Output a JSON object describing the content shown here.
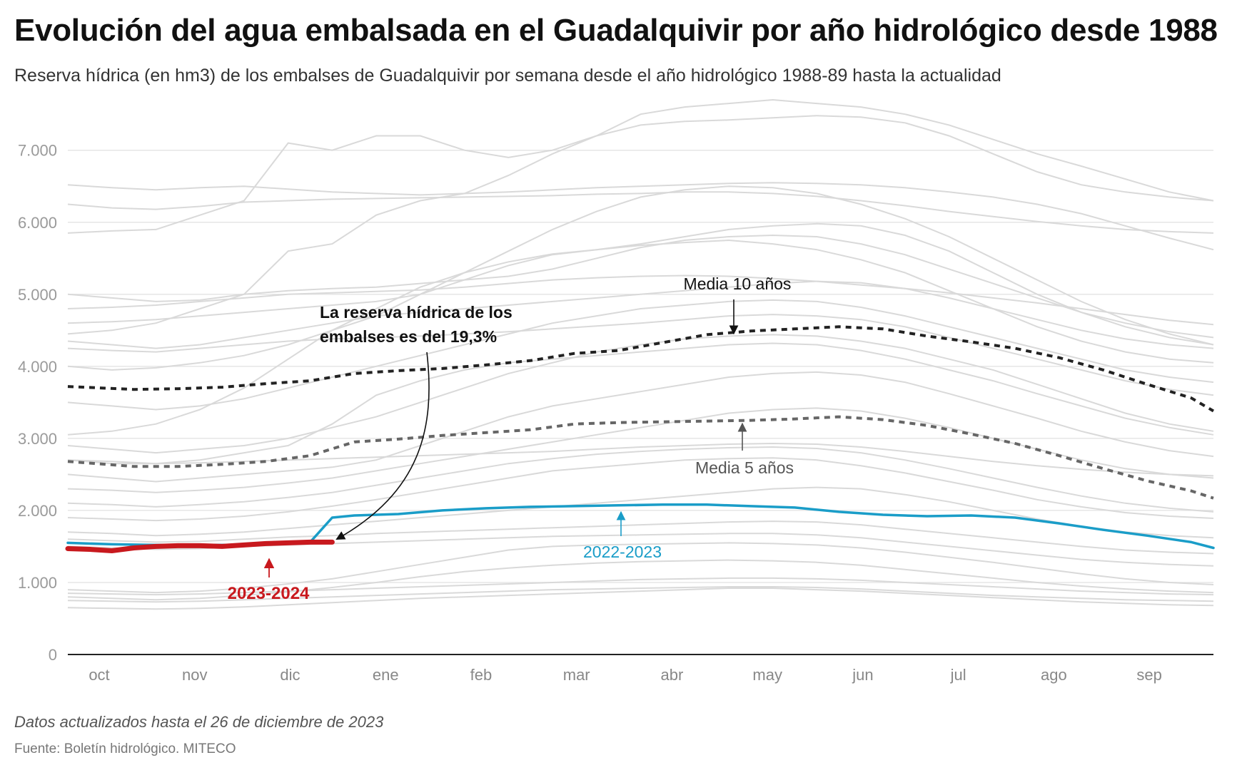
{
  "title": "Evolución del agua embalsada en el Guadalquivir por año hidrológico desde 1988",
  "subtitle": "Reserva hídrica (en hm3) de los embalses de Guadalquivir por semana desde el año hidrológico 1988-89 hasta la actualidad",
  "note": "Datos actualizados hasta el 26 de diciembre de 2023",
  "source": "Fuente: Boletín hidrológico. MITECO",
  "colors": {
    "history": "#d9d9d9",
    "current": "#c8191e",
    "previous": "#1a9dc8",
    "media10": "#222222",
    "media5": "#666666",
    "axis": "#222222",
    "grid": "#e6e6e6",
    "tick": "#9a9a9a"
  },
  "chart_data": {
    "type": "line",
    "x_unit": "semana del año hidrológico",
    "months": [
      "oct",
      "nov",
      "dic",
      "ene",
      "feb",
      "mar",
      "abr",
      "may",
      "jun",
      "jul",
      "ago",
      "sep"
    ],
    "yticks": [
      {
        "value": 0,
        "label": "0"
      },
      {
        "value": 1000,
        "label": "1.000"
      },
      {
        "value": 2000,
        "label": "2.000"
      },
      {
        "value": 3000,
        "label": "3.000"
      },
      {
        "value": 4000,
        "label": "4.000"
      },
      {
        "value": 5000,
        "label": "5.000"
      },
      {
        "value": 6000,
        "label": "6.000"
      },
      {
        "value": 7000,
        "label": "7.000"
      }
    ],
    "ylim": [
      0,
      7700
    ],
    "xlim": [
      0,
      52
    ],
    "grid": true,
    "highlight": [
      {
        "id": "media10",
        "name": "Media 10 años",
        "x": [
          0,
          3,
          5,
          7,
          9,
          11,
          13,
          15,
          17,
          19,
          21,
          23,
          25,
          27,
          29,
          31,
          33,
          35,
          37,
          39,
          41,
          43,
          45,
          47,
          49,
          51,
          52
        ],
        "values": [
          3720,
          3680,
          3690,
          3710,
          3760,
          3800,
          3900,
          3940,
          3970,
          4020,
          4080,
          4180,
          4220,
          4330,
          4440,
          4490,
          4520,
          4550,
          4520,
          4420,
          4340,
          4250,
          4120,
          3950,
          3750,
          3560,
          3380
        ]
      },
      {
        "id": "media5",
        "name": "Media 5 años",
        "x": [
          0,
          3,
          5,
          7,
          9,
          11,
          13,
          15,
          17,
          19,
          21,
          23,
          25,
          27,
          29,
          31,
          33,
          35,
          37,
          39,
          41,
          43,
          45,
          47,
          49,
          51,
          52
        ],
        "values": [
          2680,
          2610,
          2610,
          2640,
          2680,
          2760,
          2950,
          2990,
          3040,
          3080,
          3120,
          3200,
          3220,
          3230,
          3240,
          3250,
          3270,
          3300,
          3260,
          3180,
          3060,
          2930,
          2760,
          2580,
          2410,
          2270,
          2170
        ]
      },
      {
        "id": "previous",
        "name": "2022-2023",
        "x": [
          0,
          2,
          4,
          6,
          8,
          10,
          11,
          12,
          13,
          15,
          17,
          19,
          21,
          23,
          25,
          27,
          29,
          31,
          33,
          35,
          37,
          39,
          41,
          43,
          45,
          47,
          49,
          51,
          52
        ],
        "values": [
          1550,
          1530,
          1520,
          1520,
          1520,
          1550,
          1560,
          1900,
          1930,
          1950,
          2000,
          2030,
          2050,
          2060,
          2070,
          2080,
          2080,
          2060,
          2040,
          1980,
          1940,
          1920,
          1930,
          1900,
          1820,
          1730,
          1650,
          1560,
          1480
        ]
      },
      {
        "id": "current",
        "name": "2023-2024",
        "x": [
          0,
          1,
          2,
          3,
          4,
          5,
          6,
          7,
          8,
          9,
          10,
          11,
          12
        ],
        "values": [
          1470,
          1460,
          1440,
          1480,
          1500,
          1510,
          1510,
          1500,
          1520,
          1540,
          1550,
          1560,
          1560
        ]
      }
    ],
    "history_x": [
      0,
      2,
      4,
      6,
      8,
      10,
      12,
      14,
      16,
      18,
      20,
      22,
      24,
      26,
      28,
      30,
      32,
      34,
      36,
      38,
      40,
      42,
      44,
      46,
      48,
      50,
      52
    ],
    "history": [
      [
        6520,
        6480,
        6450,
        6480,
        6500,
        6460,
        6420,
        6400,
        6380,
        6400,
        6420,
        6450,
        6480,
        6500,
        6520,
        6540,
        6550,
        6540,
        6520,
        6480,
        6420,
        6350,
        6250,
        6120,
        5950,
        5780,
        5620
      ],
      [
        6250,
        6200,
        6180,
        6220,
        6280,
        6300,
        6320,
        6330,
        6340,
        6350,
        6360,
        6370,
        6390,
        6400,
        6420,
        6420,
        6400,
        6360,
        6300,
        6230,
        6150,
        6080,
        6010,
        5950,
        5900,
        5870,
        5850
      ],
      [
        5850,
        5880,
        5900,
        6100,
        6300,
        7100,
        7000,
        7200,
        7200,
        7000,
        6900,
        7000,
        7200,
        7500,
        7600,
        7650,
        7700,
        7650,
        7600,
        7500,
        7350,
        7150,
        6950,
        6780,
        6600,
        6420,
        6300
      ],
      [
        4450,
        4500,
        4600,
        4800,
        5000,
        5600,
        5700,
        6100,
        6300,
        6400,
        6650,
        6950,
        7200,
        7350,
        7400,
        7420,
        7450,
        7480,
        7460,
        7380,
        7200,
        6950,
        6700,
        6520,
        6420,
        6350,
        6300
      ],
      [
        4000,
        3950,
        3980,
        4050,
        4150,
        4300,
        4500,
        4700,
        5000,
        5300,
        5600,
        5900,
        6150,
        6350,
        6450,
        6500,
        6480,
        6400,
        6250,
        6050,
        5800,
        5500,
        5200,
        4900,
        4650,
        4450,
        4300
      ],
      [
        4600,
        4620,
        4650,
        4700,
        4750,
        4800,
        4850,
        4900,
        5000,
        5200,
        5400,
        5550,
        5620,
        5700,
        5800,
        5900,
        5950,
        5980,
        5950,
        5820,
        5600,
        5300,
        5000,
        4750,
        4550,
        4400,
        4300
      ],
      [
        3050,
        3100,
        3200,
        3400,
        3700,
        4100,
        4500,
        4800,
        5100,
        5300,
        5450,
        5560,
        5620,
        5680,
        5720,
        5750,
        5700,
        5620,
        5480,
        5300,
        5050,
        4800,
        4550,
        4350,
        4200,
        4100,
        4050
      ],
      [
        4800,
        4820,
        4850,
        4900,
        4950,
        5000,
        5020,
        5040,
        5060,
        5100,
        5150,
        5200,
        5230,
        5250,
        5260,
        5250,
        5220,
        5180,
        5130,
        5080,
        5020,
        4950,
        4880,
        4800,
        4720,
        4640,
        4580
      ],
      [
        5000,
        4950,
        4900,
        4920,
        5000,
        5050,
        5080,
        5100,
        5150,
        5200,
        5250,
        5350,
        5500,
        5650,
        5750,
        5800,
        5820,
        5800,
        5700,
        5550,
        5350,
        5150,
        4950,
        4750,
        4600,
        4480,
        4400
      ],
      [
        4350,
        4300,
        4250,
        4300,
        4400,
        4500,
        4600,
        4700,
        4750,
        4800,
        4850,
        4900,
        4950,
        5000,
        5050,
        5100,
        5150,
        5180,
        5160,
        5080,
        4950,
        4800,
        4650,
        4500,
        4380,
        4300,
        4250
      ],
      [
        3500,
        3450,
        3400,
        3450,
        3550,
        3700,
        3850,
        4000,
        4150,
        4300,
        4450,
        4600,
        4700,
        4800,
        4850,
        4900,
        4920,
        4900,
        4820,
        4700,
        4550,
        4400,
        4250,
        4100,
        3950,
        3850,
        3780
      ],
      [
        4250,
        4220,
        4200,
        4250,
        4300,
        4350,
        4380,
        4400,
        4420,
        4450,
        4480,
        4520,
        4560,
        4600,
        4650,
        4700,
        4720,
        4700,
        4650,
        4550,
        4400,
        4250,
        4100,
        3950,
        3800,
        3680,
        3600
      ],
      [
        2900,
        2850,
        2800,
        2850,
        2900,
        3000,
        3150,
        3300,
        3500,
        3700,
        3900,
        4050,
        4200,
        4300,
        4380,
        4420,
        4440,
        4420,
        4350,
        4250,
        4100,
        3950,
        3750,
        3550,
        3350,
        3200,
        3100
      ],
      [
        2700,
        2650,
        2650,
        2700,
        2800,
        2900,
        3200,
        3600,
        3800,
        3950,
        4050,
        4100,
        4150,
        4200,
        4250,
        4300,
        4320,
        4300,
        4220,
        4100,
        3950,
        3800,
        3620,
        3450,
        3280,
        3150,
        3050
      ],
      [
        2500,
        2450,
        2400,
        2450,
        2500,
        2550,
        2600,
        2700,
        2900,
        3100,
        3300,
        3450,
        3550,
        3650,
        3750,
        3850,
        3900,
        3920,
        3880,
        3780,
        3620,
        3450,
        3280,
        3100,
        2950,
        2830,
        2750
      ],
      [
        2300,
        2280,
        2250,
        2280,
        2320,
        2380,
        2450,
        2550,
        2650,
        2750,
        2850,
        2950,
        3050,
        3150,
        3250,
        3350,
        3400,
        3420,
        3380,
        3280,
        3150,
        3000,
        2850,
        2700,
        2580,
        2500,
        2450
      ],
      [
        2700,
        2680,
        2650,
        2660,
        2680,
        2700,
        2720,
        2740,
        2760,
        2780,
        2800,
        2820,
        2850,
        2880,
        2900,
        2920,
        2930,
        2920,
        2880,
        2820,
        2750,
        2680,
        2620,
        2570,
        2530,
        2500,
        2480
      ],
      [
        2100,
        2080,
        2050,
        2080,
        2120,
        2180,
        2250,
        2350,
        2450,
        2550,
        2650,
        2720,
        2780,
        2820,
        2850,
        2870,
        2880,
        2860,
        2800,
        2700,
        2580,
        2450,
        2320,
        2200,
        2100,
        2030,
        1980
      ],
      [
        1900,
        1880,
        1860,
        1880,
        1920,
        1980,
        2060,
        2150,
        2250,
        2350,
        2450,
        2550,
        2600,
        2650,
        2700,
        2720,
        2730,
        2700,
        2620,
        2520,
        2400,
        2280,
        2150,
        2050,
        1970,
        1920,
        1890
      ],
      [
        1700,
        1680,
        1650,
        1670,
        1700,
        1750,
        1800,
        1850,
        1900,
        1950,
        2000,
        2050,
        2100,
        2150,
        2200,
        2250,
        2300,
        2320,
        2300,
        2220,
        2120,
        2000,
        1880,
        1780,
        1700,
        1650,
        1620
      ],
      [
        1600,
        1580,
        1560,
        1570,
        1600,
        1630,
        1650,
        1680,
        1700,
        1720,
        1740,
        1760,
        1780,
        1800,
        1820,
        1840,
        1850,
        1840,
        1800,
        1740,
        1680,
        1620,
        1560,
        1500,
        1450,
        1420,
        1400
      ],
      [
        1500,
        1480,
        1460,
        1470,
        1500,
        1520,
        1540,
        1560,
        1580,
        1600,
        1620,
        1640,
        1650,
        1660,
        1670,
        1680,
        1680,
        1660,
        1620,
        1560,
        1500,
        1440,
        1380,
        1320,
        1280,
        1250,
        1230
      ],
      [
        900,
        880,
        860,
        880,
        920,
        980,
        1050,
        1150,
        1250,
        1350,
        1450,
        1500,
        1520,
        1530,
        1540,
        1550,
        1540,
        1520,
        1480,
        1420,
        1350,
        1280,
        1200,
        1120,
        1050,
        1000,
        970
      ],
      [
        800,
        780,
        760,
        780,
        820,
        870,
        930,
        1000,
        1080,
        1150,
        1200,
        1240,
        1270,
        1290,
        1300,
        1310,
        1300,
        1280,
        1240,
        1180,
        1120,
        1060,
        1000,
        950,
        910,
        880,
        860
      ],
      [
        850,
        840,
        830,
        840,
        860,
        880,
        900,
        920,
        940,
        960,
        980,
        1000,
        1020,
        1040,
        1050,
        1060,
        1060,
        1050,
        1030,
        1000,
        970,
        940,
        910,
        880,
        860,
        840,
        830
      ],
      [
        750,
        740,
        730,
        740,
        760,
        780,
        800,
        820,
        840,
        860,
        880,
        900,
        910,
        920,
        930,
        940,
        940,
        930,
        910,
        880,
        850,
        820,
        800,
        780,
        760,
        750,
        740
      ],
      [
        650,
        640,
        630,
        640,
        660,
        690,
        720,
        750,
        780,
        800,
        820,
        840,
        860,
        880,
        900,
        920,
        920,
        900,
        880,
        850,
        820,
        790,
        760,
        730,
        710,
        690,
        680
      ]
    ],
    "annotations": [
      {
        "id": "reserva",
        "text_lines": [
          "La reserva hídrica de los",
          "embalses es del 19,3%"
        ]
      },
      {
        "id": "media10",
        "text": "Media 10 años"
      },
      {
        "id": "media5",
        "text": "Media 5 años"
      },
      {
        "id": "previous",
        "text": "2022-2023"
      },
      {
        "id": "current",
        "text": "2023-2024"
      }
    ]
  }
}
